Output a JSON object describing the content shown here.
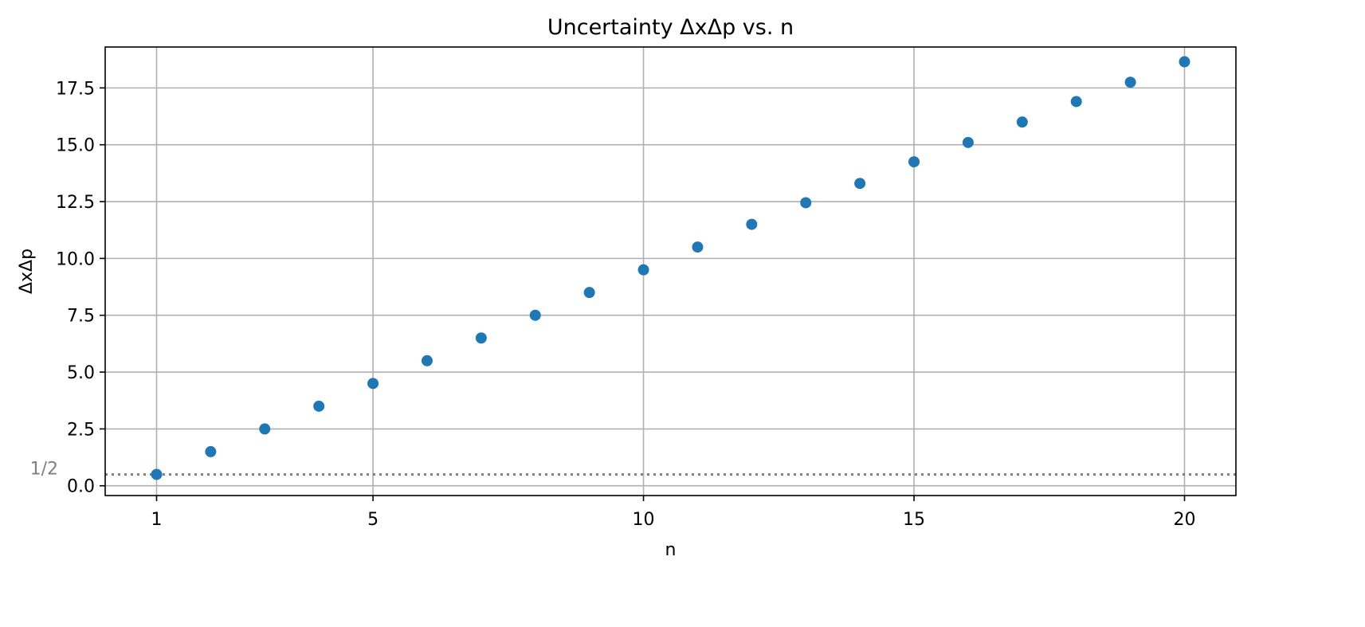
{
  "chart_data": {
    "type": "scatter",
    "title": "Uncertainty ΔxΔp vs. n",
    "xlabel": "n",
    "ylabel": "ΔxΔp",
    "xlim": [
      0.05,
      20.95
    ],
    "ylim": [
      -0.43,
      19.3
    ],
    "x_ticks": [
      1,
      5,
      10,
      15,
      20
    ],
    "y_ticks": [
      0.0,
      2.5,
      5.0,
      7.5,
      10.0,
      12.5,
      15.0,
      17.5
    ],
    "y_tick_labels": [
      "0.0",
      "2.5",
      "5.0",
      "7.5",
      "10.0",
      "12.5",
      "15.0",
      "17.5"
    ],
    "grid": true,
    "series": [
      {
        "color": "#1f77b4",
        "x": [
          1,
          2,
          3,
          4,
          5,
          6,
          7,
          8,
          9,
          10,
          11,
          12,
          13,
          14,
          15,
          16,
          17,
          18,
          19,
          20
        ],
        "y": [
          0.5,
          1.5,
          2.5,
          3.5,
          4.5,
          5.5,
          6.5,
          7.5,
          8.5,
          9.5,
          10.5,
          11.5,
          12.45,
          13.3,
          14.25,
          15.1,
          16.0,
          16.9,
          17.75,
          18.65
        ]
      }
    ],
    "reference_line": {
      "y": 0.5,
      "label": "1/2",
      "color": "#808080",
      "style": "dotted"
    }
  }
}
